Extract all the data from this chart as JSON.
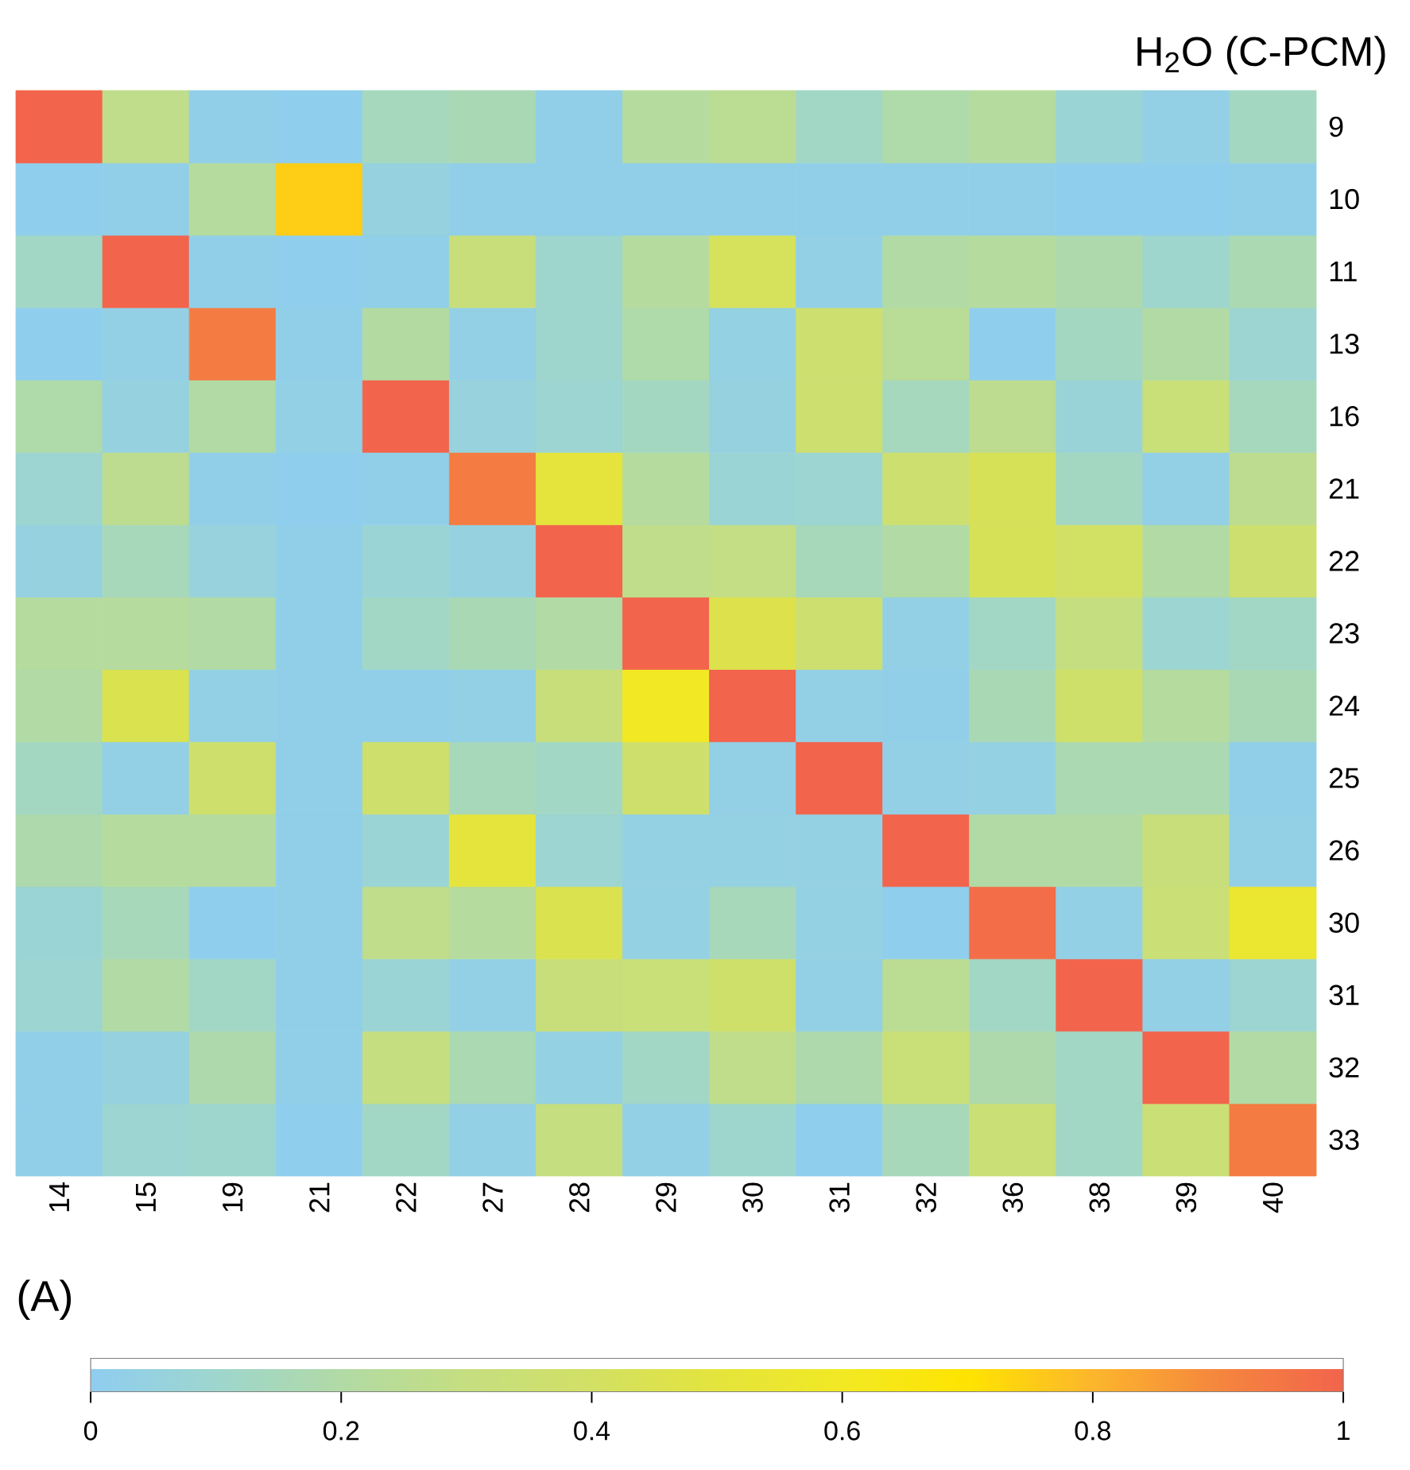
{
  "chart_data": {
    "type": "heatmap",
    "title": "H$_{2}$O (C-PCM)",
    "categories": [
      "14",
      "15",
      "19",
      "21",
      "22",
      "27",
      "28",
      "29",
      "30",
      "31",
      "32",
      "36",
      "38",
      "39",
      "40"
    ],
    "y_categories": [
      "9",
      "10",
      "11",
      "13",
      "16",
      "21",
      "22",
      "23",
      "24",
      "25",
      "26",
      "30",
      "31",
      "32",
      "33"
    ],
    "cells": [
      [
        1,
        0.27,
        0.02,
        0.01,
        0.14,
        0.16,
        0.02,
        0.22,
        0.25,
        0.12,
        0.19,
        0.22,
        0.08,
        0.03,
        0.13
      ],
      [
        0.01,
        0.02,
        0.22,
        0.75,
        0.05,
        0.02,
        0.02,
        0.02,
        0.02,
        0.02,
        0.02,
        0.02,
        0.01,
        0.01,
        0.02
      ],
      [
        0.12,
        1,
        0.02,
        0.01,
        0.02,
        0.32,
        0.1,
        0.22,
        0.42,
        0.03,
        0.2,
        0.22,
        0.18,
        0.1,
        0.17
      ],
      [
        0.01,
        0.03,
        0.93,
        0.02,
        0.21,
        0.03,
        0.1,
        0.19,
        0.04,
        0.36,
        0.24,
        0.01,
        0.13,
        0.2,
        0.09
      ],
      [
        0.19,
        0.05,
        0.2,
        0.03,
        1,
        0.06,
        0.09,
        0.13,
        0.05,
        0.36,
        0.14,
        0.26,
        0.07,
        0.33,
        0.14
      ],
      [
        0.09,
        0.26,
        0.02,
        0.01,
        0.02,
        0.93,
        0.5,
        0.22,
        0.08,
        0.09,
        0.36,
        0.43,
        0.13,
        0.03,
        0.26
      ],
      [
        0.05,
        0.15,
        0.06,
        0.02,
        0.08,
        0.05,
        1,
        0.27,
        0.29,
        0.15,
        0.2,
        0.43,
        0.4,
        0.2,
        0.36
      ],
      [
        0.22,
        0.22,
        0.2,
        0.02,
        0.12,
        0.16,
        0.2,
        1,
        0.46,
        0.36,
        0.03,
        0.12,
        0.3,
        0.09,
        0.12
      ],
      [
        0.2,
        0.45,
        0.03,
        0.02,
        0.02,
        0.03,
        0.32,
        0.6,
        1,
        0.03,
        0.02,
        0.16,
        0.38,
        0.22,
        0.16
      ],
      [
        0.13,
        0.03,
        0.37,
        0.02,
        0.37,
        0.15,
        0.12,
        0.37,
        0.03,
        1,
        0.03,
        0.04,
        0.17,
        0.17,
        0.02
      ],
      [
        0.18,
        0.22,
        0.22,
        0.02,
        0.08,
        0.5,
        0.09,
        0.04,
        0.04,
        0.04,
        1,
        0.2,
        0.2,
        0.32,
        0.03
      ],
      [
        0.08,
        0.15,
        0.01,
        0.02,
        0.27,
        0.22,
        0.45,
        0.04,
        0.15,
        0.04,
        0.01,
        0.97,
        0.03,
        0.34,
        0.55
      ],
      [
        0.09,
        0.2,
        0.12,
        0.02,
        0.08,
        0.03,
        0.32,
        0.33,
        0.38,
        0.03,
        0.25,
        0.12,
        1,
        0.03,
        0.09
      ],
      [
        0.02,
        0.05,
        0.18,
        0.02,
        0.3,
        0.17,
        0.04,
        0.12,
        0.27,
        0.18,
        0.33,
        0.18,
        0.12,
        1,
        0.2
      ],
      [
        0.02,
        0.09,
        0.1,
        0.01,
        0.12,
        0.03,
        0.3,
        0.03,
        0.1,
        0.01,
        0.15,
        0.34,
        0.12,
        0.34,
        0.93
      ]
    ],
    "clim": [
      0,
      1
    ],
    "cticks": [
      0,
      0.2,
      0.4,
      0.6,
      0.8,
      1
    ],
    "annotations": [
      "(A)"
    ]
  }
}
